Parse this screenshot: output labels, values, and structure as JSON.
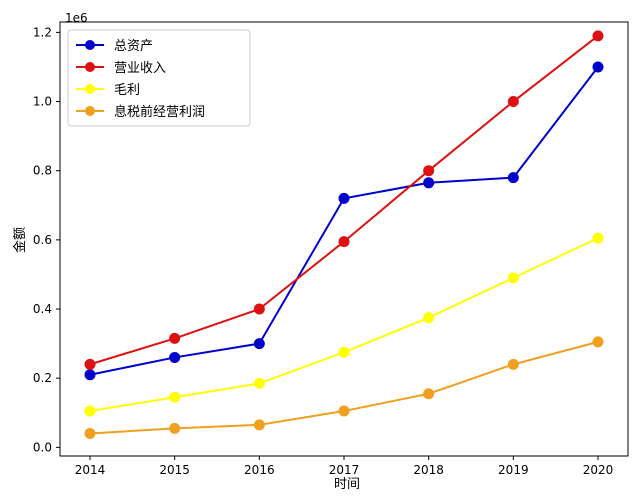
{
  "chart_data": {
    "type": "line",
    "title": "",
    "xlabel": "时间",
    "ylabel": "金额",
    "y_offset_label": "1e6",
    "categories": [
      "2014",
      "2015",
      "2016",
      "2017",
      "2018",
      "2019",
      "2020"
    ],
    "ylim": [
      -0.025,
      1.23
    ],
    "yticks": [
      0.0,
      0.2,
      0.4,
      0.6,
      0.8,
      1.0,
      1.2
    ],
    "ytick_labels": [
      "0.0",
      "0.2",
      "0.4",
      "0.6",
      "0.8",
      "1.0",
      "1.2"
    ],
    "y_multiplier": 1000000,
    "grid": false,
    "legend_position": "top-left",
    "series": [
      {
        "name": "总资产",
        "color": "#0000cc",
        "values": [
          0.21,
          0.26,
          0.3,
          0.72,
          0.765,
          0.78,
          1.1
        ]
      },
      {
        "name": "营业收入",
        "color": "#dd1111",
        "values": [
          0.24,
          0.315,
          0.4,
          0.595,
          0.8,
          1.0,
          1.19
        ]
      },
      {
        "name": "毛利",
        "color": "#ffff00",
        "values": [
          0.105,
          0.145,
          0.185,
          0.275,
          0.375,
          0.49,
          0.605
        ]
      },
      {
        "name": "息税前经营利润",
        "color": "#f0a020",
        "values": [
          0.04,
          0.055,
          0.065,
          0.105,
          0.155,
          0.24,
          0.305
        ]
      }
    ]
  }
}
